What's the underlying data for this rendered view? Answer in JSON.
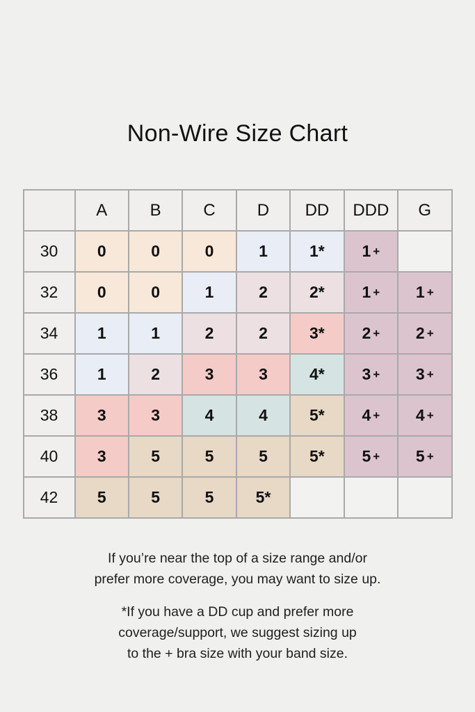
{
  "title": "Non-Wire Size Chart",
  "colors": {
    "page_bg": "#f0f0ef",
    "border": "#a9a9a9",
    "header_bg": "#f0efee",
    "text": "#111111",
    "bands": {
      "none": "#f2f2f1",
      "cup0": "#f8e8d9",
      "cup1": "#e9edf6",
      "cup2": "#ece0e3",
      "cup3": "#f5cbc7",
      "cup4": "#d5e4e3",
      "cup5": "#e8d8c6",
      "plus": "#dcc4cf"
    }
  },
  "chart_data": {
    "type": "table",
    "title": "Non-Wire Size Chart",
    "columns": [
      "",
      "A",
      "B",
      "C",
      "D",
      "DD",
      "DDD",
      "G"
    ],
    "rows": [
      {
        "band_size": "30",
        "cells": [
          {
            "text": "0",
            "band": "cup0"
          },
          {
            "text": "0",
            "band": "cup0"
          },
          {
            "text": "0",
            "band": "cup0"
          },
          {
            "text": "1",
            "band": "cup1"
          },
          {
            "text": "1*",
            "band": "cup1"
          },
          {
            "text": "1+",
            "band": "plus"
          },
          {
            "text": "",
            "band": "none"
          }
        ]
      },
      {
        "band_size": "32",
        "cells": [
          {
            "text": "0",
            "band": "cup0"
          },
          {
            "text": "0",
            "band": "cup0"
          },
          {
            "text": "1",
            "band": "cup1"
          },
          {
            "text": "2",
            "band": "cup2"
          },
          {
            "text": "2*",
            "band": "cup2"
          },
          {
            "text": "1+",
            "band": "plus"
          },
          {
            "text": "1+",
            "band": "plus"
          }
        ]
      },
      {
        "band_size": "34",
        "cells": [
          {
            "text": "1",
            "band": "cup1"
          },
          {
            "text": "1",
            "band": "cup1"
          },
          {
            "text": "2",
            "band": "cup2"
          },
          {
            "text": "2",
            "band": "cup2"
          },
          {
            "text": "3*",
            "band": "cup3"
          },
          {
            "text": "2+",
            "band": "plus"
          },
          {
            "text": "2+",
            "band": "plus"
          }
        ]
      },
      {
        "band_size": "36",
        "cells": [
          {
            "text": "1",
            "band": "cup1"
          },
          {
            "text": "2",
            "band": "cup2"
          },
          {
            "text": "3",
            "band": "cup3"
          },
          {
            "text": "3",
            "band": "cup3"
          },
          {
            "text": "4*",
            "band": "cup4"
          },
          {
            "text": "3+",
            "band": "plus"
          },
          {
            "text": "3+",
            "band": "plus"
          }
        ]
      },
      {
        "band_size": "38",
        "cells": [
          {
            "text": "3",
            "band": "cup3"
          },
          {
            "text": "3",
            "band": "cup3"
          },
          {
            "text": "4",
            "band": "cup4"
          },
          {
            "text": "4",
            "band": "cup4"
          },
          {
            "text": "5*",
            "band": "cup5"
          },
          {
            "text": "4+",
            "band": "plus"
          },
          {
            "text": "4+",
            "band": "plus"
          }
        ]
      },
      {
        "band_size": "40",
        "cells": [
          {
            "text": "3",
            "band": "cup3"
          },
          {
            "text": "5",
            "band": "cup5"
          },
          {
            "text": "5",
            "band": "cup5"
          },
          {
            "text": "5",
            "band": "cup5"
          },
          {
            "text": "5*",
            "band": "cup5"
          },
          {
            "text": "5+",
            "band": "plus"
          },
          {
            "text": "5+",
            "band": "plus"
          }
        ]
      },
      {
        "band_size": "42",
        "cells": [
          {
            "text": "5",
            "band": "cup5"
          },
          {
            "text": "5",
            "band": "cup5"
          },
          {
            "text": "5",
            "band": "cup5"
          },
          {
            "text": "5*",
            "band": "cup5"
          },
          {
            "text": "",
            "band": "none"
          },
          {
            "text": "",
            "band": "none"
          },
          {
            "text": "",
            "band": "none"
          }
        ]
      }
    ]
  },
  "notes": {
    "sizing_note": {
      "lines": [
        "If you’re near the top of a size range and/or",
        "prefer more coverage, you may want to size up."
      ]
    },
    "dd_cup_note": {
      "lines": [
        "*If you have a DD cup and prefer more",
        "coverage/support, we suggest sizing up",
        "to the + bra size with your band size."
      ]
    }
  }
}
